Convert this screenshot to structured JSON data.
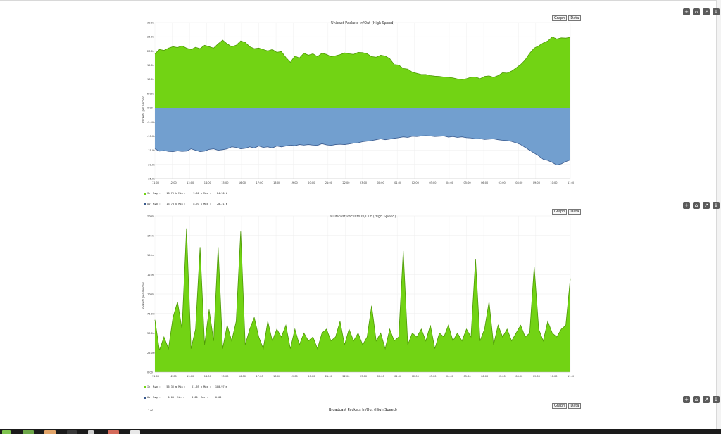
{
  "toolbar": {
    "icons": [
      "plus-icon",
      "home-icon",
      "line-chart-icon",
      "arrow-down-icon"
    ],
    "glyphs": [
      "+",
      "⌂",
      "↗",
      "↓"
    ]
  },
  "tabs": {
    "graph": "Graph",
    "data": "Data"
  },
  "x_ticks": [
    "11:00",
    "12:00",
    "13:00",
    "14:00",
    "15:00",
    "16:00",
    "17:00",
    "18:00",
    "19:00",
    "20:00",
    "21:00",
    "22:00",
    "23:00",
    "00:00",
    "01:00",
    "02:00",
    "03:00",
    "04:00",
    "05:00",
    "06:00",
    "07:00",
    "08:00",
    "09:00",
    "10:00",
    "11:00"
  ],
  "panels": [
    {
      "title": "Unicast Packets In/Out (High Speed)",
      "ylabel": "Packets per second",
      "legend": [
        {
          "label": "In  Avg :    18.79 k Min :     9.60 k Max :    24.90 k",
          "color": "#72d314"
        },
        {
          "label": "Out Avg :    13.73 k Min :     8.97 k Max :    20.21 k",
          "color": "#38598d"
        }
      ]
    },
    {
      "title": "Multicast Packets In/Out (High Speed)",
      "ylabel": "Packets per second",
      "legend": [
        {
          "label": "In  Avg :    56.36 m Min :    21.69 m Max :   180.97 m",
          "color": "#72d314"
        },
        {
          "label": "Out Avg :     0.00  Min :     0.00  Max :     0.00",
          "color": "#38598d"
        }
      ]
    },
    {
      "title": "Broadcast Packets In/Out (High Speed)",
      "ylabel": "",
      "legend": []
    }
  ],
  "chart_data": [
    {
      "type": "area",
      "title": "Unicast Packets In/Out (High Speed)",
      "ylabel": "Packets per second",
      "yticks": [
        "30.0k",
        "25.0k",
        "20.0k",
        "15.0k",
        "10.0k",
        "5.00k",
        "0.00",
        "-5.00k",
        "-10.0k",
        "-15.0k",
        "-20.0k",
        "-25.0k"
      ],
      "ylim": [
        -25000,
        30000
      ],
      "series": [
        {
          "name": "In",
          "color": "#72d314",
          "values": [
            19000,
            20500,
            20200,
            21000,
            21500,
            21200,
            21800,
            21000,
            20500,
            21300,
            20800,
            22000,
            21500,
            21000,
            22500,
            23800,
            22500,
            21500,
            22000,
            23500,
            23000,
            21500,
            20800,
            21000,
            20500,
            20000,
            20500,
            19500,
            19800,
            17700,
            16000,
            18200,
            17500,
            19200,
            18500,
            19000,
            18000,
            19200,
            18800,
            18000,
            18300,
            18700,
            19300,
            19000,
            18800,
            19500,
            19400,
            19000,
            18000,
            17800,
            18500,
            18200,
            17300,
            15200,
            15000,
            13800,
            13600,
            12500,
            12100,
            11700,
            11700,
            11300,
            11100,
            11000,
            10800,
            10700,
            10500,
            10100,
            9900,
            10200,
            10700,
            10800,
            10200,
            11000,
            11200,
            10700,
            11300,
            12300,
            12200,
            12900,
            14000,
            15200,
            16800,
            19200,
            21000,
            21800,
            22800,
            23500,
            24900,
            24200,
            24600,
            24500,
            24800
          ]
        },
        {
          "name": "Out",
          "color": "#38598d",
          "values": [
            -14500,
            -15300,
            -15100,
            -15400,
            -15500,
            -15200,
            -15400,
            -15300,
            -14500,
            -15000,
            -15500,
            -15300,
            -14700,
            -14500,
            -15000,
            -14800,
            -14500,
            -13800,
            -14000,
            -14500,
            -14300,
            -13800,
            -14200,
            -13500,
            -14000,
            -13800,
            -14200,
            -13500,
            -13800,
            -13500,
            -13200,
            -13400,
            -13000,
            -13200,
            -13000,
            -13200,
            -13300,
            -12700,
            -13100,
            -13300,
            -13000,
            -12900,
            -13000,
            -12800,
            -12500,
            -12400,
            -12000,
            -11800,
            -11600,
            -11300,
            -11000,
            -11300,
            -11100,
            -10800,
            -10600,
            -10300,
            -10500,
            -10100,
            -10200,
            -10000,
            -9900,
            -10000,
            -10200,
            -10100,
            -10000,
            -10400,
            -10200,
            -10500,
            -10300,
            -10600,
            -10700,
            -11000,
            -10900,
            -11200,
            -11100,
            -11000,
            -11300,
            -11500,
            -11600,
            -11900,
            -12400,
            -13000,
            -14000,
            -15000,
            -16000,
            -17000,
            -18200,
            -18600,
            -19300,
            -20200,
            -19800,
            -19000,
            -18400
          ]
        }
      ]
    },
    {
      "type": "area",
      "title": "Multicast Packets In/Out (High Speed)",
      "ylabel": "Packets per second",
      "yticks": [
        "200m",
        "175m",
        "150m",
        "125m",
        "100m",
        "75.0m",
        "50.0m",
        "25.0m",
        "0.00"
      ],
      "ylim": [
        0,
        200
      ],
      "series": [
        {
          "name": "In",
          "color": "#72d314",
          "values": [
            67,
            28,
            45,
            30,
            70,
            90,
            55,
            184,
            30,
            55,
            160,
            35,
            80,
            40,
            160,
            30,
            60,
            40,
            65,
            180,
            35,
            55,
            70,
            45,
            30,
            65,
            40,
            55,
            45,
            60,
            30,
            55,
            35,
            50,
            40,
            45,
            30,
            50,
            55,
            40,
            45,
            65,
            35,
            55,
            40,
            50,
            35,
            45,
            85,
            40,
            50,
            30,
            55,
            40,
            45,
            155,
            35,
            50,
            45,
            55,
            40,
            60,
            30,
            50,
            45,
            60,
            40,
            50,
            40,
            55,
            45,
            145,
            40,
            55,
            90,
            35,
            60,
            45,
            55,
            40,
            50,
            60,
            45,
            50,
            135,
            55,
            40,
            65,
            50,
            45,
            55,
            60,
            120
          ]
        },
        {
          "name": "Out",
          "color": "#38598d",
          "values": [
            0
          ]
        }
      ]
    },
    {
      "type": "area",
      "title": "Broadcast Packets In/Out (High Speed)",
      "yticks": [
        "1.00"
      ]
    }
  ]
}
